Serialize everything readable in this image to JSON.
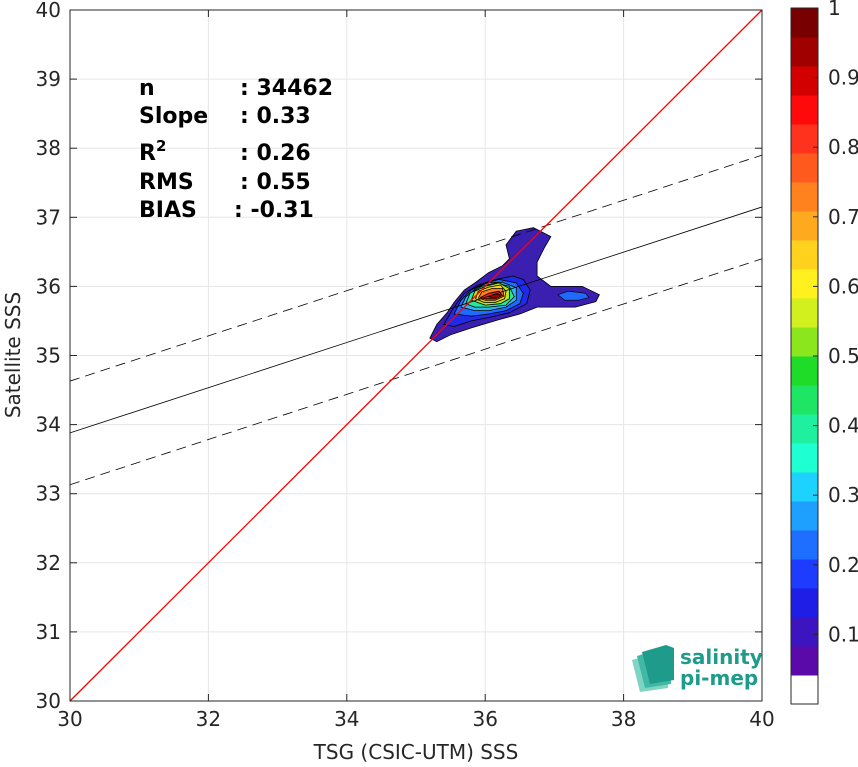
{
  "chart_data": {
    "type": "heatmap",
    "xlabel": "TSG (CSIC-UTM) SSS",
    "ylabel": "Satellite SSS",
    "xlim": [
      30,
      40
    ],
    "ylim": [
      30,
      40
    ],
    "xticks": [
      30,
      32,
      34,
      36,
      38,
      40
    ],
    "yticks": [
      30,
      31,
      32,
      33,
      34,
      35,
      36,
      37,
      38,
      39,
      40
    ],
    "grid": true,
    "stats": [
      {
        "name": "n",
        "value": ": 34462"
      },
      {
        "name": "Slope",
        "value": ": 0.33"
      },
      {
        "name": "R",
        "sup": "2",
        "value": ": 0.26"
      },
      {
        "name": "RMS",
        "value": ": 0.55"
      },
      {
        "name": "BIAS",
        "value": ": -0.31"
      }
    ],
    "identity_line": {
      "color": "#ff0000",
      "from": [
        30,
        30
      ],
      "to": [
        40,
        40
      ]
    },
    "regression_line": {
      "from": [
        30,
        33.88
      ],
      "to": [
        40,
        37.15
      ]
    },
    "regression_bounds": [
      {
        "from": [
          30,
          34.63
        ],
        "to": [
          40,
          37.9
        ]
      },
      {
        "from": [
          30,
          33.13
        ],
        "to": [
          40,
          36.4
        ]
      }
    ],
    "density_peak": {
      "x": 36.0,
      "y": 35.87
    },
    "density_levels": [
      {
        "level": 0.05,
        "color": "#3a1fb0",
        "points": [
          [
            35.2,
            35.25
          ],
          [
            35.3,
            35.45
          ],
          [
            35.45,
            35.62
          ],
          [
            35.55,
            35.77
          ],
          [
            35.7,
            35.95
          ],
          [
            35.85,
            36.05
          ],
          [
            36.05,
            36.2
          ],
          [
            36.25,
            36.3
          ],
          [
            36.35,
            36.4
          ],
          [
            36.3,
            36.6
          ],
          [
            36.45,
            36.8
          ],
          [
            36.7,
            36.85
          ],
          [
            36.95,
            36.72
          ],
          [
            36.85,
            36.55
          ],
          [
            36.75,
            36.35
          ],
          [
            36.75,
            36.15
          ],
          [
            36.95,
            36.0
          ],
          [
            37.4,
            36.0
          ],
          [
            37.65,
            35.88
          ],
          [
            37.6,
            35.78
          ],
          [
            37.3,
            35.7
          ],
          [
            36.75,
            35.7
          ],
          [
            36.5,
            35.6
          ],
          [
            36.2,
            35.52
          ],
          [
            35.8,
            35.4
          ],
          [
            35.5,
            35.3
          ],
          [
            35.3,
            35.2
          ]
        ]
      },
      {
        "level": 0.15,
        "color": "#1f2be6",
        "points": [
          [
            35.4,
            35.45
          ],
          [
            35.55,
            35.7
          ],
          [
            35.7,
            35.9
          ],
          [
            35.9,
            36.02
          ],
          [
            36.15,
            36.1
          ],
          [
            36.4,
            36.15
          ],
          [
            36.55,
            36.1
          ],
          [
            36.65,
            35.95
          ],
          [
            36.6,
            35.75
          ],
          [
            36.35,
            35.62
          ],
          [
            36.05,
            35.55
          ],
          [
            35.8,
            35.5
          ],
          [
            35.55,
            35.42
          ]
        ]
      },
      {
        "level": 0.25,
        "color": "#1f6bff",
        "points": [
          [
            35.55,
            35.6
          ],
          [
            35.65,
            35.8
          ],
          [
            35.8,
            35.95
          ],
          [
            36.0,
            36.05
          ],
          [
            36.2,
            36.1
          ],
          [
            36.45,
            36.05
          ],
          [
            36.55,
            35.9
          ],
          [
            36.5,
            35.75
          ],
          [
            36.3,
            35.65
          ],
          [
            36.05,
            35.6
          ],
          [
            35.8,
            35.57
          ]
        ]
      },
      {
        "level": 0.35,
        "color": "#2bb7f0",
        "points": [
          [
            35.65,
            35.7
          ],
          [
            35.72,
            35.85
          ],
          [
            35.88,
            35.98
          ],
          [
            36.05,
            36.06
          ],
          [
            36.25,
            36.06
          ],
          [
            36.45,
            35.98
          ],
          [
            36.45,
            35.8
          ],
          [
            36.3,
            35.7
          ],
          [
            36.05,
            35.65
          ],
          [
            35.85,
            35.65
          ]
        ]
      },
      {
        "level": 0.45,
        "color": "#26e6a0",
        "points": [
          [
            35.72,
            35.75
          ],
          [
            35.78,
            35.9
          ],
          [
            35.95,
            36.0
          ],
          [
            36.15,
            36.05
          ],
          [
            36.35,
            36.0
          ],
          [
            36.42,
            35.85
          ],
          [
            36.3,
            35.73
          ],
          [
            36.05,
            35.7
          ],
          [
            35.85,
            35.7
          ]
        ]
      },
      {
        "level": 0.6,
        "color": "#b6e61c",
        "points": [
          [
            35.8,
            35.8
          ],
          [
            35.85,
            35.93
          ],
          [
            36.0,
            36.0
          ],
          [
            36.2,
            36.05
          ],
          [
            36.35,
            35.97
          ],
          [
            36.35,
            35.82
          ],
          [
            36.22,
            35.75
          ],
          [
            36.0,
            35.73
          ]
        ]
      },
      {
        "level": 0.7,
        "color": "#ffd21c",
        "points": [
          [
            35.86,
            35.82
          ],
          [
            35.9,
            35.93
          ],
          [
            36.05,
            35.99
          ],
          [
            36.22,
            36.02
          ],
          [
            36.3,
            35.93
          ],
          [
            36.28,
            35.82
          ],
          [
            36.15,
            35.77
          ],
          [
            35.98,
            35.77
          ]
        ]
      },
      {
        "level": 0.8,
        "color": "#ff7a1c",
        "points": [
          [
            35.9,
            35.83
          ],
          [
            35.95,
            35.92
          ],
          [
            36.1,
            35.97
          ],
          [
            36.25,
            35.97
          ],
          [
            36.27,
            35.86
          ],
          [
            36.15,
            35.8
          ],
          [
            36.0,
            35.8
          ]
        ]
      },
      {
        "level": 0.9,
        "color": "#f21e1e",
        "points": [
          [
            35.93,
            35.84
          ],
          [
            36.05,
            35.9
          ],
          [
            36.2,
            35.93
          ],
          [
            36.25,
            35.87
          ],
          [
            36.15,
            35.82
          ],
          [
            36.0,
            35.82
          ]
        ]
      },
      {
        "level": 0.97,
        "color": "#a00000",
        "points": [
          [
            36.05,
            35.85
          ],
          [
            36.15,
            35.89
          ],
          [
            36.22,
            35.88
          ],
          [
            36.2,
            35.84
          ],
          [
            36.1,
            35.84
          ]
        ]
      }
    ],
    "side_blob": {
      "level": 0.2,
      "color": "#1f6bff",
      "points": [
        [
          37.05,
          35.88
        ],
        [
          37.2,
          35.93
        ],
        [
          37.45,
          35.9
        ],
        [
          37.5,
          35.84
        ],
        [
          37.35,
          35.8
        ],
        [
          37.15,
          35.8
        ]
      ]
    },
    "colorbar": {
      "range": [
        0,
        1
      ],
      "ticks": [
        0.1,
        0.2,
        0.3,
        0.4,
        0.5,
        0.6,
        0.7,
        0.8,
        0.9,
        1
      ],
      "tick_labels": [
        "0.1",
        "0.2",
        "0.3",
        "0.4",
        "0.5",
        "0.6",
        "0.7",
        "0.8",
        "0.9",
        "1"
      ],
      "bands": [
        "#ffffff",
        "#5a0aa8",
        "#3c14c0",
        "#1e1ee6",
        "#1e3cff",
        "#1e6eff",
        "#1ea0ff",
        "#1ed2ff",
        "#1effd2",
        "#1ef0a0",
        "#1ee664",
        "#1edc28",
        "#8ce61e",
        "#d2f01e",
        "#fff01e",
        "#ffd21e",
        "#ffaa1e",
        "#ff821e",
        "#ff5a1e",
        "#ff321e",
        "#ff0a0a",
        "#d20000",
        "#a00000",
        "#780000"
      ]
    }
  },
  "logo": {
    "line1": "salinity",
    "line2": "pi-mep"
  }
}
